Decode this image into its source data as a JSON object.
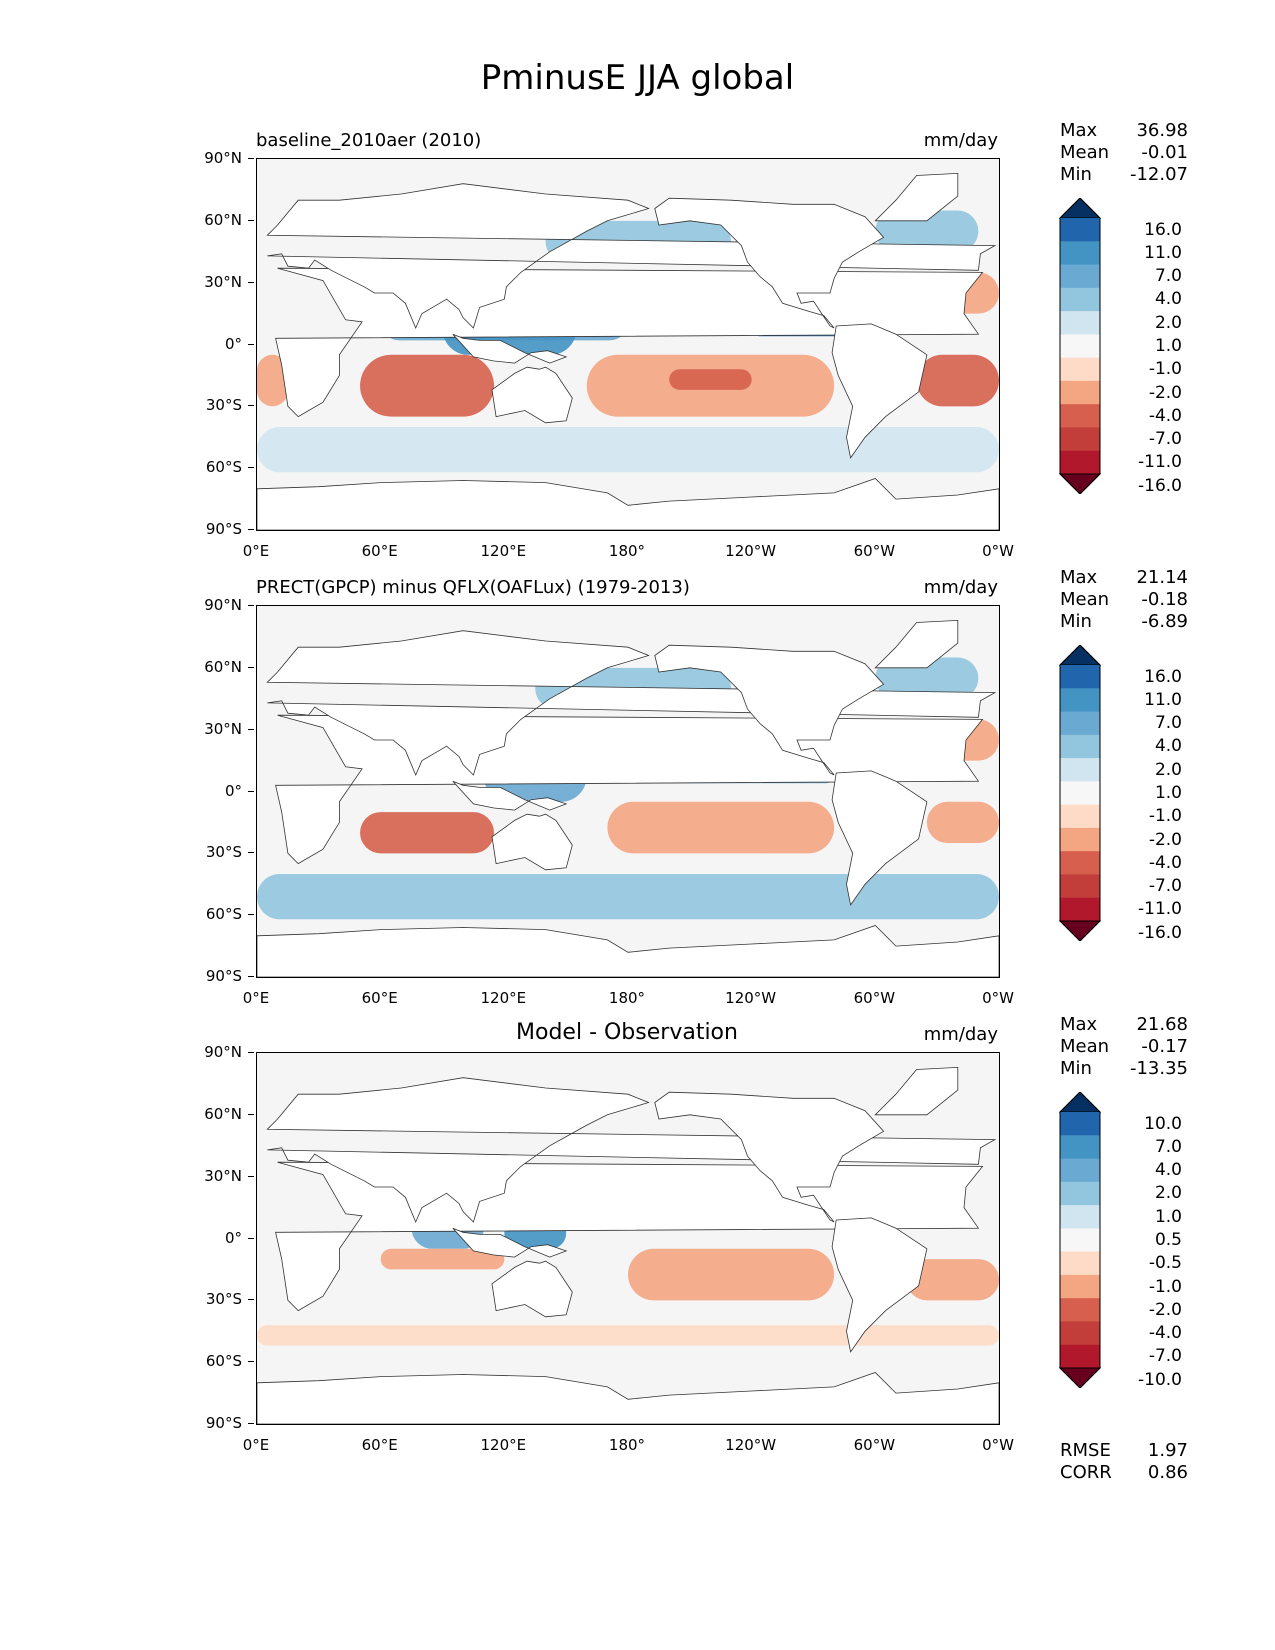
{
  "figure": {
    "title": "PminusE JJA global"
  },
  "panels": [
    {
      "title": "baseline_2010aer (2010)",
      "title_style": "left",
      "units": "mm/day",
      "stats": [
        {
          "label": "Max",
          "value": "36.98"
        },
        {
          "label": "Mean",
          "value": "-0.01"
        },
        {
          "label": "Min",
          "value": "-12.07"
        }
      ],
      "colorbar": {
        "labels": [
          "16.0",
          "11.0",
          "7.0",
          "4.0",
          "2.0",
          "1.0",
          "-1.0",
          "-2.0",
          "-4.0",
          "-7.0",
          "-11.0",
          "-16.0"
        ],
        "colors": [
          "#053061",
          "#2166ac",
          "#4393c3",
          "#6aa9d2",
          "#92c5de",
          "#d1e5f0",
          "#f7f7f7",
          "#fddbc7",
          "#f4a582",
          "#d6604d",
          "#c13e3a",
          "#b2182b",
          "#67001f"
        ]
      }
    },
    {
      "title": "PRECT(GPCP) minus QFLX(OAFLux) (1979-2013)",
      "title_style": "left",
      "units": "mm/day",
      "stats": [
        {
          "label": "Max",
          "value": "21.14"
        },
        {
          "label": "Mean",
          "value": "-0.18"
        },
        {
          "label": "Min",
          "value": "-6.89"
        }
      ],
      "colorbar": {
        "labels": [
          "16.0",
          "11.0",
          "7.0",
          "4.0",
          "2.0",
          "1.0",
          "-1.0",
          "-2.0",
          "-4.0",
          "-7.0",
          "-11.0",
          "-16.0"
        ],
        "colors": [
          "#053061",
          "#2166ac",
          "#4393c3",
          "#6aa9d2",
          "#92c5de",
          "#d1e5f0",
          "#f7f7f7",
          "#fddbc7",
          "#f4a582",
          "#d6604d",
          "#c13e3a",
          "#b2182b",
          "#67001f"
        ]
      }
    },
    {
      "title": "Model - Observation",
      "title_style": "center",
      "units": "mm/day",
      "stats": [
        {
          "label": "Max",
          "value": "21.68"
        },
        {
          "label": "Mean",
          "value": "-0.17"
        },
        {
          "label": "Min",
          "value": "-13.35"
        }
      ],
      "colorbar": {
        "labels": [
          "10.0",
          "7.0",
          "4.0",
          "2.0",
          "1.0",
          "0.5",
          "-0.5",
          "-1.0",
          "-2.0",
          "-4.0",
          "-7.0",
          "-10.0"
        ],
        "colors": [
          "#053061",
          "#2166ac",
          "#4393c3",
          "#6aa9d2",
          "#92c5de",
          "#d1e5f0",
          "#f7f7f7",
          "#fddbc7",
          "#f4a582",
          "#d6604d",
          "#c13e3a",
          "#b2182b",
          "#67001f"
        ]
      }
    }
  ],
  "axes": {
    "y_ticks": [
      "90°N",
      "60°N",
      "30°N",
      "0°",
      "30°S",
      "60°S",
      "90°S"
    ],
    "x_ticks": [
      "0°E",
      "60°E",
      "120°E",
      "180°",
      "120°W",
      "60°W",
      "0°W"
    ],
    "lat_values": [
      90,
      60,
      30,
      0,
      -30,
      -60,
      -90
    ],
    "lon_values": [
      0,
      60,
      120,
      180,
      240,
      300,
      360
    ]
  },
  "footer_stats": [
    {
      "label": "RMSE",
      "value": "1.97"
    },
    {
      "label": "CORR",
      "value": "0.86"
    }
  ]
}
